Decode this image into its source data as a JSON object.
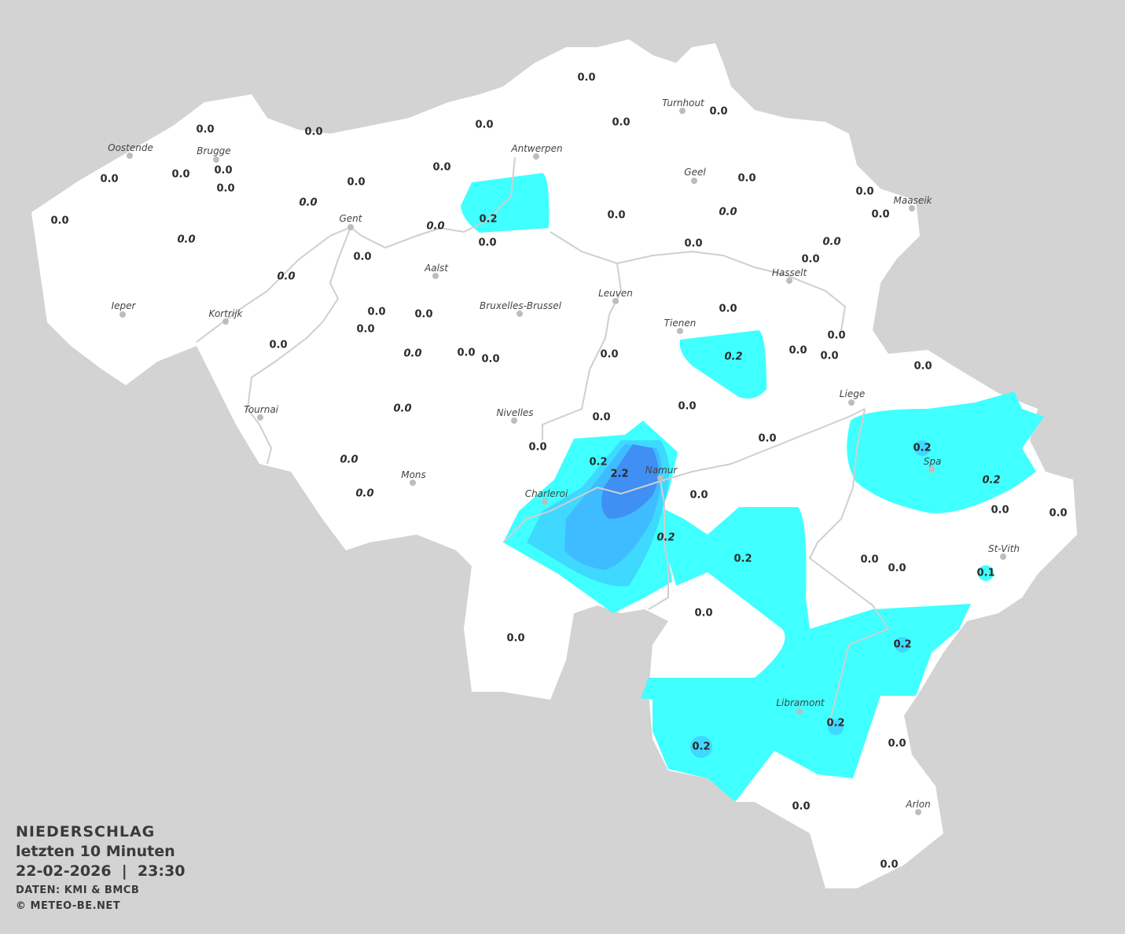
{
  "legend": {
    "title": "NIEDERSCHLAG",
    "period": "letzten 10 Minuten",
    "datetime": "22-02-2026  |  23:30",
    "source": "DATEN: KMI & BMCB",
    "copyright": "© METEO-BE.NET"
  },
  "colors": {
    "background": "#d3d3d3",
    "land": "#ffffff",
    "precip_light": "#40ffff",
    "precip_mid": "#3fd8ff",
    "precip_mid2": "#3fbcff",
    "precip_heavy": "#3f8ff5",
    "rivers": "#cfcfcf"
  },
  "cities": [
    "Oostende",
    "Brugge",
    "Antwerpen",
    "Turnhout",
    "Geel",
    "Maaseik",
    "Gent",
    "Aalst",
    "Hasselt",
    "Leuven",
    "Bruxelles-Brussel",
    "Ieper",
    "Kortrijk",
    "Tienen",
    "Liege",
    "Tournai",
    "Nivelles",
    "Spa",
    "Mons",
    "Namur",
    "Charleroi",
    "St-Vith",
    "Libramont",
    "Arlon"
  ],
  "stations": [
    "0.0",
    "0.0",
    "0.0",
    "0.0",
    "0.0",
    "0.0",
    "0.0",
    "0.0",
    "0.0",
    "0.0",
    "0.0",
    "0.0",
    "0.0",
    "0.0",
    "0.0",
    "0.0",
    "0.2",
    "0.0",
    "0.0",
    "0.0",
    "0.0",
    "0.0",
    "0.0",
    "0.0",
    "0.0",
    "0.0",
    "0.0",
    "0.0",
    "0.0",
    "0.0",
    "0.0",
    "0.0",
    "0.0",
    "0.0",
    "0.0",
    "0.0",
    "0.0",
    "0.2",
    "0.0",
    "0.0",
    "0.0",
    "0.0",
    "0.0",
    "0.0",
    "0.0",
    "0.0",
    "0.0",
    "0.0",
    "0.0",
    "0.2",
    "2.2",
    "0.0",
    "0.2",
    "0.2",
    "0.2",
    "0.2",
    "0.0",
    "0.0",
    "0.0",
    "0.0",
    "0.1",
    "0.0",
    "0.0",
    "0.2",
    "0.2",
    "0.2",
    "0.0",
    "0.0",
    "0.0"
  ]
}
